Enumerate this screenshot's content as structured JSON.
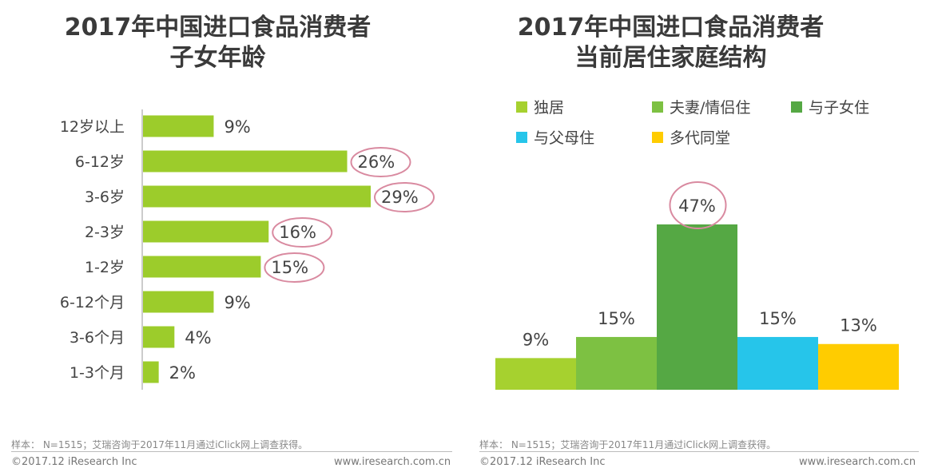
{
  "left": {
    "title_line1": "2017年中国进口食品消费者",
    "title_line2": "子女年龄",
    "footer_note": "样本：  N=1515；艾瑞咨询于2017年11月通过iClick网上调查获得。",
    "copyright": "©2017.12 iResearch Inc",
    "url": "www.iresearch.com.cn"
  },
  "right": {
    "title_line1": "2017年中国进口食品消费者",
    "title_line2": "当前居住家庭结构",
    "footer_note": "样本：  N=1515；艾瑞咨询于2017年11月通过iClick网上调查获得。",
    "copyright": "©2017.12 iResearch Inc",
    "url": "www.iresearch.com.cn"
  },
  "chart_data": [
    {
      "type": "bar",
      "orientation": "horizontal",
      "title": "2017年中国进口食品消费者子女年龄",
      "categories": [
        "12岁以上",
        "6-12岁",
        "3-6岁",
        "2-3岁",
        "1-2岁",
        "6-12个月",
        "3-6个月",
        "1-3个月"
      ],
      "values": [
        9,
        26,
        29,
        16,
        15,
        9,
        4,
        2
      ],
      "value_labels": [
        "9%",
        "26%",
        "29%",
        "16%",
        "15%",
        "9%",
        "4%",
        "2%"
      ],
      "circled": [
        false,
        true,
        true,
        true,
        true,
        false,
        false,
        false
      ],
      "unit": "%",
      "bar_color": "#9ccc2b",
      "circle_color": "#d98aa0",
      "xlim": [
        0,
        29
      ]
    },
    {
      "type": "bar",
      "orientation": "vertical",
      "title": "2017年中国进口食品消费者当前居住家庭结构",
      "categories": [
        "独居",
        "夫妻/情侣住",
        "与子女住",
        "与父母住",
        "多代同堂"
      ],
      "values": [
        9,
        15,
        47,
        15,
        13
      ],
      "value_labels": [
        "9%",
        "15%",
        "47%",
        "15%",
        "13%"
      ],
      "circled": [
        false,
        false,
        true,
        false,
        false
      ],
      "colors": [
        "#a6d12f",
        "#7dc142",
        "#55a844",
        "#26c5ea",
        "#ffcc00"
      ],
      "circle_color": "#d98aa0",
      "unit": "%",
      "ylim": [
        0,
        47
      ]
    }
  ]
}
